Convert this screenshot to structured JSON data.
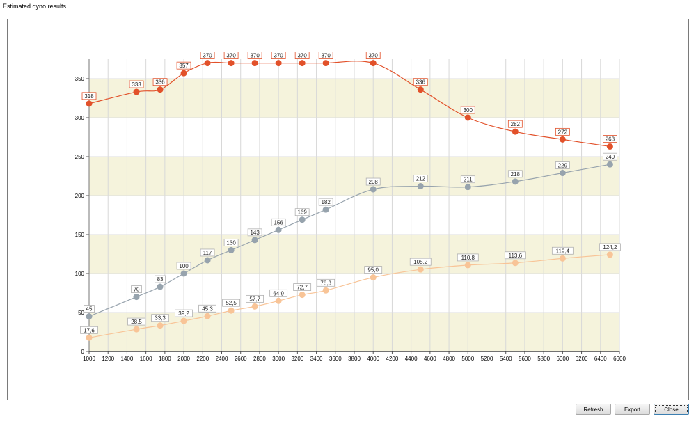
{
  "window": {
    "title": "Estimated dyno results"
  },
  "buttons": {
    "refresh": "Refresh",
    "export": "Export",
    "close": "Close"
  },
  "chart_data": {
    "type": "line",
    "title": "",
    "xlabel": "",
    "ylabel": "",
    "xlim": [
      1000,
      6600
    ],
    "ylim": [
      0,
      375
    ],
    "xticks": [
      1000,
      1200,
      1400,
      1600,
      1800,
      2000,
      2200,
      2400,
      2600,
      2800,
      3000,
      3200,
      3400,
      3600,
      3800,
      4000,
      4200,
      4400,
      4600,
      4800,
      5000,
      5200,
      5400,
      5600,
      5800,
      6000,
      6200,
      6400,
      6600
    ],
    "yticks": [
      0,
      50,
      100,
      150,
      200,
      250,
      300,
      350
    ],
    "band_color": "#f5f3dc",
    "series": [
      {
        "name": "series-1",
        "color": "#e2512a",
        "x": [
          1000,
          1500,
          1750,
          2000,
          2250,
          2500,
          2750,
          3000,
          3250,
          3500,
          4000,
          4500,
          5000,
          5500,
          6000,
          6500
        ],
        "values": [
          318,
          333,
          336,
          357,
          370,
          370,
          370,
          370,
          370,
          370,
          370,
          336,
          300,
          282,
          272,
          263
        ],
        "labels": [
          "318",
          "333",
          "336",
          "357",
          "370",
          "370",
          "370",
          "370",
          "370",
          "370",
          "370",
          "336",
          "300",
          "282",
          "272",
          "263"
        ]
      },
      {
        "name": "series-2",
        "color": "#97a3ad",
        "x": [
          1000,
          1500,
          1750,
          2000,
          2250,
          2500,
          2750,
          3000,
          3250,
          3500,
          4000,
          4500,
          5000,
          5500,
          6000,
          6500
        ],
        "values": [
          45,
          70,
          83,
          100,
          117,
          130,
          143,
          156,
          169,
          182,
          208,
          212,
          211,
          218,
          229,
          240
        ],
        "labels": [
          "45",
          "70",
          "83",
          "100",
          "117",
          "130",
          "143",
          "156",
          "169",
          "182",
          "208",
          "212",
          "211",
          "218",
          "229",
          "240"
        ]
      },
      {
        "name": "series-3",
        "color": "#f8c497",
        "x": [
          1000,
          1500,
          1750,
          2000,
          2250,
          2500,
          2750,
          3000,
          3250,
          3500,
          4000,
          4500,
          5000,
          5500,
          6000,
          6500
        ],
        "values": [
          17.6,
          28.5,
          33.3,
          39.2,
          45.3,
          52.5,
          57.7,
          64.9,
          72.7,
          78.3,
          95.0,
          105.2,
          110.8,
          113.6,
          119.4,
          124.2
        ],
        "labels": [
          "17,6",
          "28,5",
          "33,3",
          "39,2",
          "45,3",
          "52,5",
          "57,7",
          "64,9",
          "72,7",
          "78,3",
          "95,0",
          "105,2",
          "110,8",
          "113,6",
          "119,4",
          "124,2"
        ]
      }
    ]
  }
}
